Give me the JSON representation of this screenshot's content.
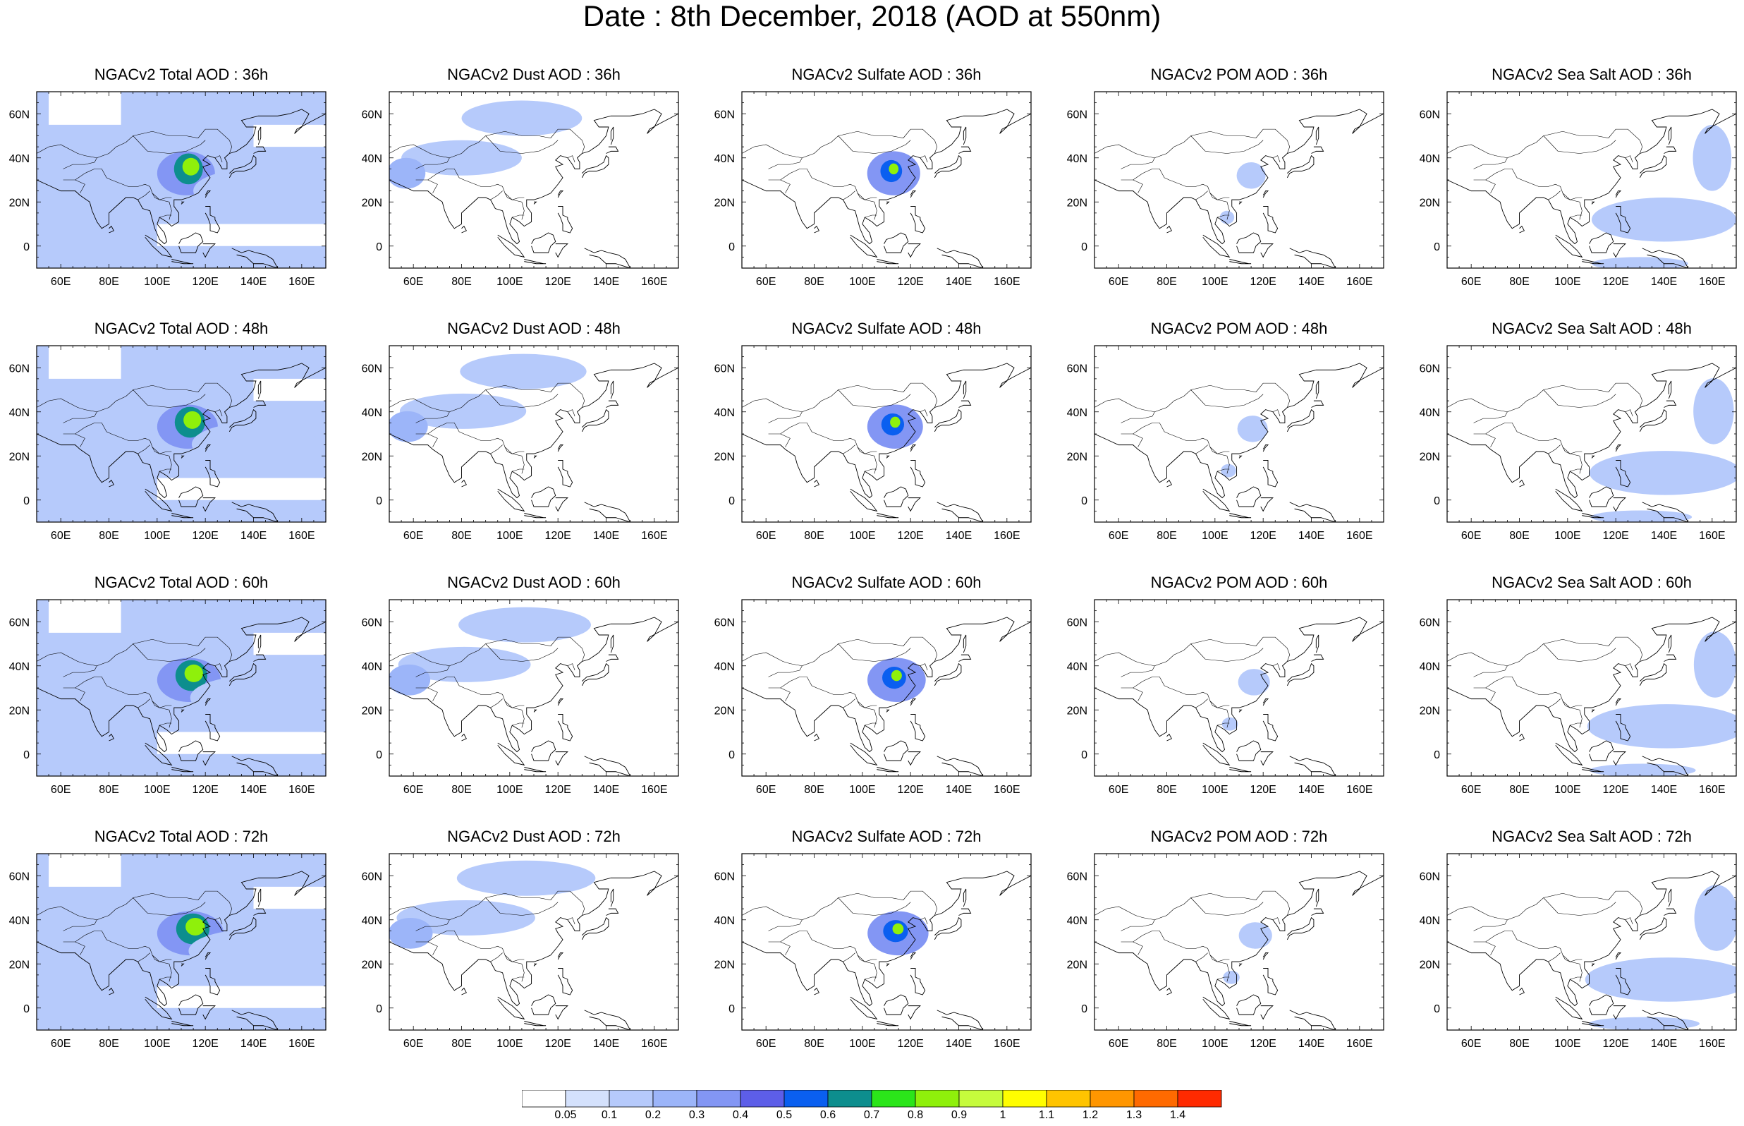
{
  "title": "Date : 8th December, 2018 (AOD at 550nm)",
  "species": [
    "Total",
    "Dust",
    "Sulfate",
    "POM",
    "Sea Salt"
  ],
  "hours": [
    "36h",
    "48h",
    "60h",
    "72h"
  ],
  "panel_titles": [
    [
      "NGACv2 Total AOD : 36h",
      "NGACv2 Dust AOD : 36h",
      "NGACv2 Sulfate AOD : 36h",
      "NGACv2 POM AOD : 36h",
      "NGACv2 Sea Salt AOD : 36h"
    ],
    [
      "NGACv2 Total AOD : 48h",
      "NGACv2 Dust AOD : 48h",
      "NGACv2 Sulfate AOD : 48h",
      "NGACv2 POM AOD : 48h",
      "NGACv2 Sea Salt AOD : 48h"
    ],
    [
      "NGACv2 Total AOD : 60h",
      "NGACv2 Dust AOD : 60h",
      "NGACv2 Sulfate AOD : 60h",
      "NGACv2 POM AOD : 60h",
      "NGACv2 Sea Salt AOD : 60h"
    ],
    [
      "NGACv2 Total AOD : 72h",
      "NGACv2 Dust AOD : 72h",
      "NGACv2 Sulfate AOD : 72h",
      "NGACv2 POM AOD : 72h",
      "NGACv2 Sea Salt  AOD : 72h"
    ]
  ],
  "map": {
    "lon_range": [
      50,
      170
    ],
    "lat_range": [
      -10,
      70
    ],
    "lon_ticks": [
      60,
      80,
      100,
      120,
      140,
      160
    ],
    "lon_tick_labels": [
      "60E",
      "80E",
      "100E",
      "120E",
      "140E",
      "160E"
    ],
    "lat_ticks": [
      0,
      20,
      40,
      60
    ],
    "lat_tick_labels": [
      "0",
      "20N",
      "40N",
      "60N"
    ]
  },
  "colorbar": {
    "levels": [
      "0.05",
      "0.1",
      "0.2",
      "0.3",
      "0.4",
      "0.5",
      "0.6",
      "0.7",
      "0.8",
      "0.9",
      "1",
      "1.1",
      "1.2",
      "1.3",
      "1.4"
    ],
    "colors": [
      "#ffffff",
      "#d4e1fc",
      "#b6cafb",
      "#9cb5f9",
      "#8396f4",
      "#5d5ee8",
      "#0a5ff0",
      "#0d8e8e",
      "#2be51a",
      "#8ff00b",
      "#c6fb3c",
      "#fffe00",
      "#ffc400",
      "#ff9600",
      "#ff6a00",
      "#ff2a00"
    ]
  },
  "chart_data": {
    "type": "heatmap",
    "title": "Date : 8th December, 2018 (AOD at 550nm)",
    "fields": "AOD at 550nm for Total, Dust, Sulfate, POM and Sea Salt at 36h, 48h, 60h, 72h",
    "xlim": [
      50,
      170
    ],
    "ylim": [
      -10,
      70
    ],
    "levels": [
      0.05,
      0.1,
      0.2,
      0.3,
      0.4,
      0.5,
      0.6,
      0.7,
      0.8,
      0.9,
      1,
      1.1,
      1.2,
      1.3,
      1.4
    ],
    "features": {
      "Total": [
        {
          "type": "background",
          "value": 0.1
        },
        {
          "type": "blob",
          "lon": 112,
          "lat": 33,
          "rx": 12,
          "ry": 10,
          "value": 0.35
        },
        {
          "type": "blob",
          "lon": 113,
          "lat": 35,
          "rx": 6,
          "ry": 7,
          "value": 0.65
        },
        {
          "type": "blob",
          "lon": 114,
          "lat": 36,
          "rx": 3.5,
          "ry": 4,
          "value": 0.85
        },
        {
          "type": "blob",
          "lon": 70,
          "lat": 30,
          "rx": 18,
          "ry": 10,
          "value": 0.15
        },
        {
          "type": "blob",
          "lon": 140,
          "lat": 25,
          "rx": 25,
          "ry": 10,
          "value": 0.15
        }
      ],
      "Dust": [
        {
          "type": "blob",
          "lon": 80,
          "lat": 40,
          "rx": 25,
          "ry": 8,
          "value": 0.15
        },
        {
          "type": "blob",
          "lon": 57,
          "lat": 33,
          "rx": 8,
          "ry": 7,
          "value": 0.25
        },
        {
          "type": "blob",
          "lon": 105,
          "lat": 58,
          "rx": 25,
          "ry": 8,
          "value": 0.1
        }
      ],
      "Sulfate": [
        {
          "type": "blob",
          "lon": 113,
          "lat": 33,
          "rx": 11,
          "ry": 10,
          "value": 0.3
        },
        {
          "type": "blob",
          "lon": 112,
          "lat": 34,
          "rx": 4.5,
          "ry": 5,
          "value": 0.55
        },
        {
          "type": "blob",
          "lon": 113,
          "lat": 35,
          "rx": 2,
          "ry": 2.5,
          "value": 0.8
        }
      ],
      "POM": [
        {
          "type": "blob",
          "lon": 115,
          "lat": 32,
          "rx": 6,
          "ry": 6,
          "value": 0.12
        },
        {
          "type": "blob",
          "lon": 105,
          "lat": 13,
          "rx": 3,
          "ry": 3,
          "value": 0.15
        }
      ],
      "Sea Salt": [
        {
          "type": "blob",
          "lon": 140,
          "lat": 12,
          "rx": 30,
          "ry": 10,
          "value": 0.12
        },
        {
          "type": "blob",
          "lon": 160,
          "lat": 40,
          "rx": 8,
          "ry": 15,
          "value": 0.1
        },
        {
          "type": "blob",
          "lon": 130,
          "lat": -8,
          "rx": 20,
          "ry": 3,
          "value": 0.1
        }
      ]
    }
  }
}
